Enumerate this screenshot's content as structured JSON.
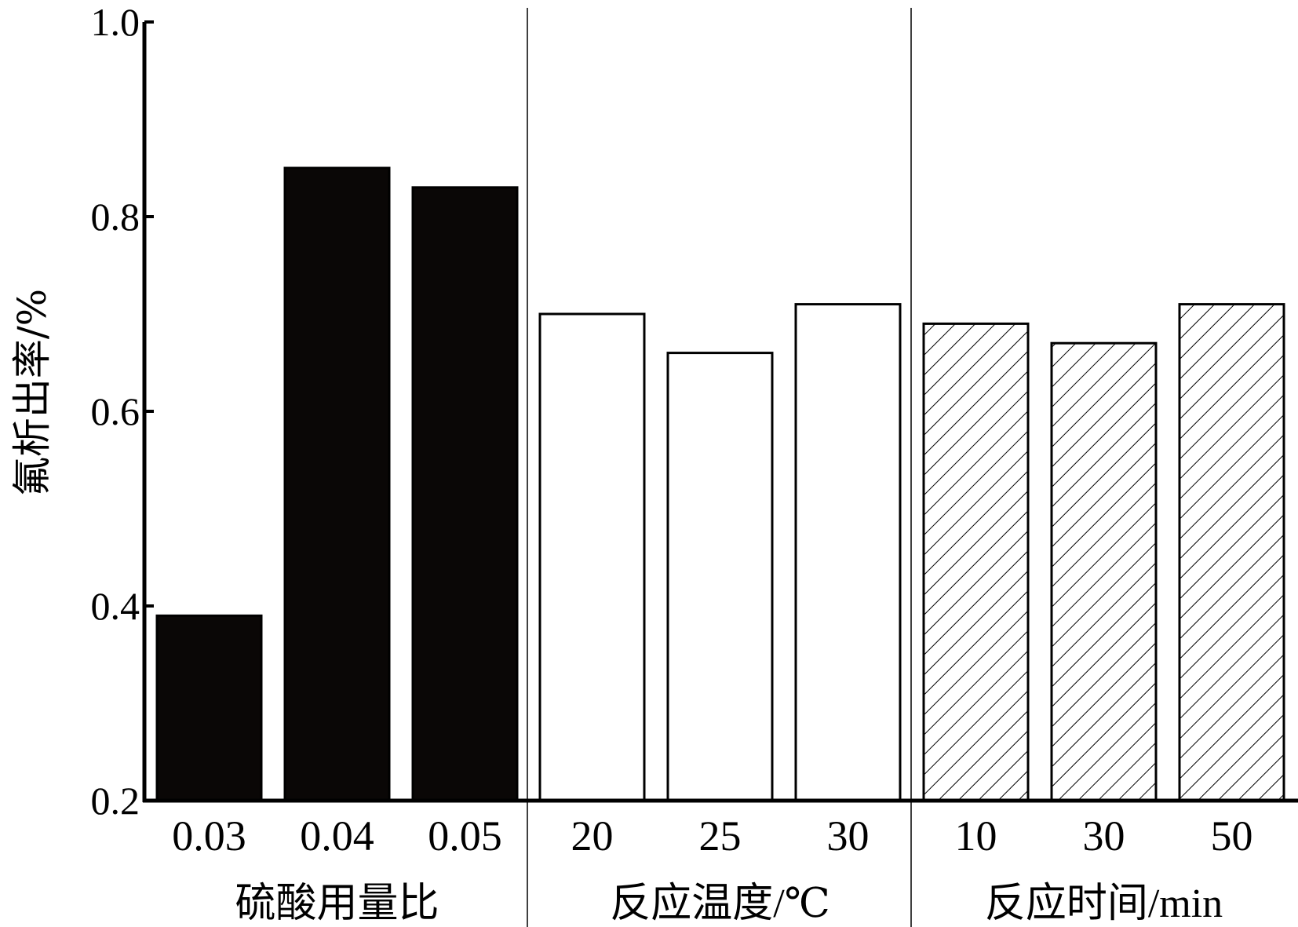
{
  "chart_data": {
    "type": "bar",
    "title": "",
    "ylabel": "氟析出率/%",
    "ylim": [
      0.2,
      1.0
    ],
    "yticks": [
      "0.2",
      "0.4",
      "0.6",
      "0.8",
      "1.0"
    ],
    "ytick_values": [
      0.2,
      0.4,
      0.6,
      0.8,
      1.0
    ],
    "grid": false,
    "groups": [
      {
        "name": "硫酸用量比",
        "fill": "solid-black",
        "categories": [
          "0.03",
          "0.04",
          "0.05"
        ],
        "values": [
          0.39,
          0.85,
          0.83
        ]
      },
      {
        "name": "反应温度/℃",
        "fill": "white",
        "categories": [
          "20",
          "25",
          "30"
        ],
        "values": [
          0.7,
          0.66,
          0.71
        ]
      },
      {
        "name": "反应时间/min",
        "fill": "diagonal-hatch",
        "categories": [
          "10",
          "30",
          "50"
        ],
        "values": [
          0.69,
          0.67,
          0.71
        ]
      }
    ]
  },
  "colors": {
    "bar_black": "#0a0706",
    "stroke": "#000000",
    "background": "#ffffff"
  }
}
